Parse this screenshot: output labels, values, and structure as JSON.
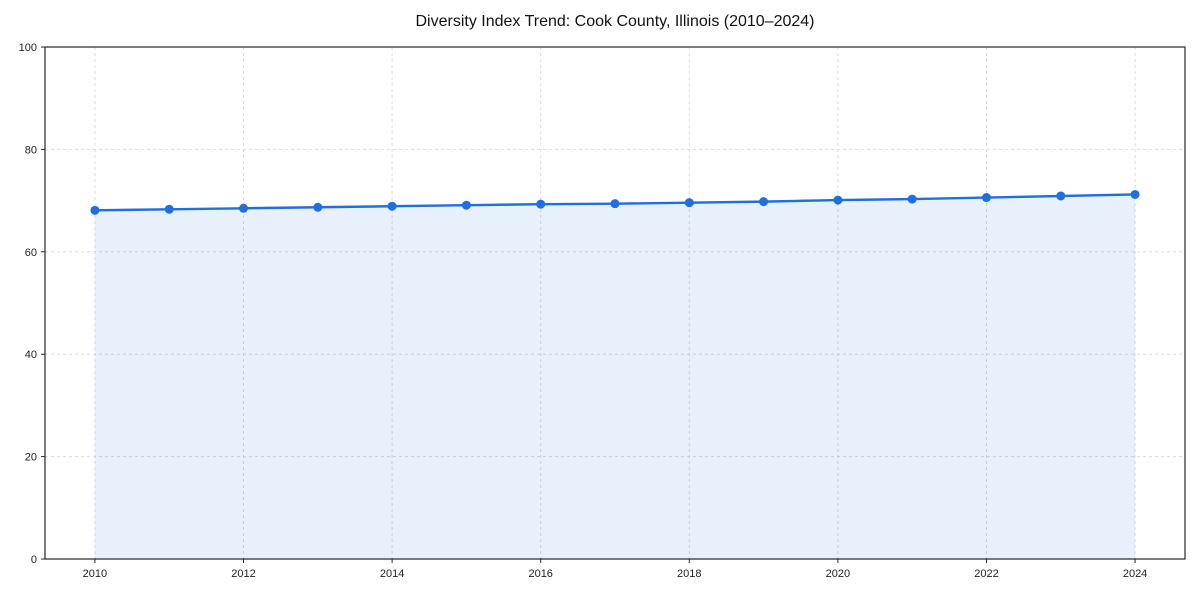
{
  "chart_data": {
    "type": "area",
    "title": "Diversity Index Trend: Cook County, Illinois (2010–2024)",
    "x": [
      2010,
      2011,
      2012,
      2013,
      2014,
      2015,
      2016,
      2017,
      2018,
      2019,
      2020,
      2021,
      2022,
      2023,
      2024
    ],
    "values": [
      68.1,
      68.3,
      68.5,
      68.7,
      68.9,
      69.1,
      69.3,
      69.4,
      69.6,
      69.8,
      70.1,
      70.3,
      70.6,
      70.9,
      71.2
    ],
    "xlabel": "",
    "ylabel": "",
    "ylim": [
      0,
      100
    ],
    "yticks": [
      0,
      20,
      40,
      60,
      80,
      100
    ],
    "xticks": [
      2010,
      2012,
      2014,
      2016,
      2018,
      2020,
      2022,
      2024
    ],
    "grid": true,
    "legend": "none",
    "line_color": "#1f6fde",
    "marker_color": "#1f6fde",
    "fill_color": "#1f6fde",
    "fill_opacity": 0.1,
    "grid_color": "#dcdcdc",
    "spine_color": "#262626",
    "background_color": "#ffffff"
  }
}
